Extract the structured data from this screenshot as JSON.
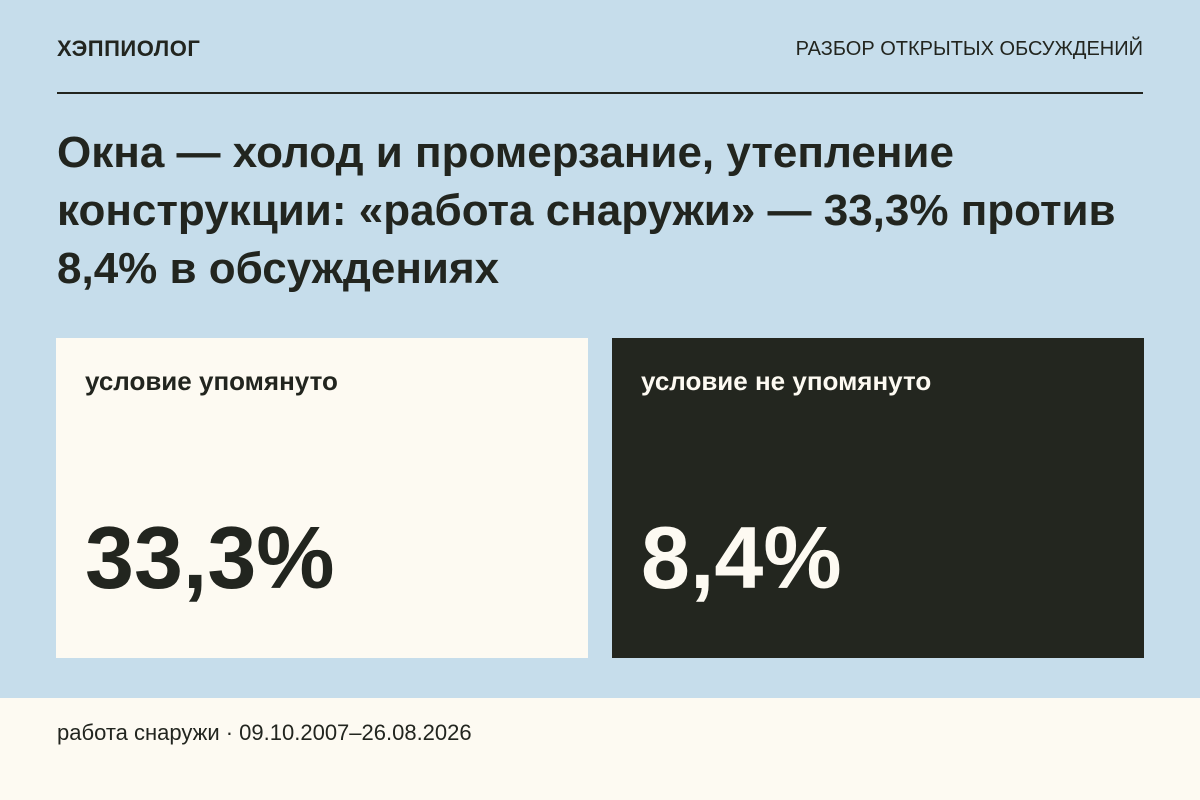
{
  "header": {
    "brand": "ХЭППИОЛОГ",
    "section": "РАЗБОР ОТКРЫТЫХ ОБСУЖДЕНИЙ"
  },
  "title": "Окна — холод и промерзание, утепление конструкции: «работа снаружи» — 33,3% против 8,4% в обсуждениях",
  "cards": [
    {
      "label": "условие упомянуто",
      "value": "33,3%"
    },
    {
      "label": "условие не упомянуто",
      "value": "8,4%"
    }
  ],
  "footer": "работа снаружи · 09.10.2007–26.08.2026"
}
